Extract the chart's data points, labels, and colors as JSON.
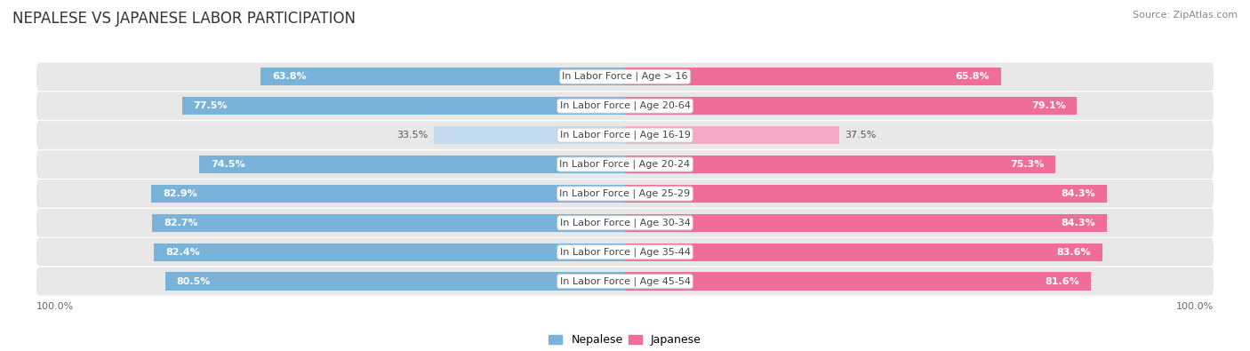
{
  "title": "NEPALESE VS JAPANESE LABOR PARTICIPATION",
  "source": "Source: ZipAtlas.com",
  "categories": [
    "In Labor Force | Age > 16",
    "In Labor Force | Age 20-64",
    "In Labor Force | Age 16-19",
    "In Labor Force | Age 20-24",
    "In Labor Force | Age 25-29",
    "In Labor Force | Age 30-34",
    "In Labor Force | Age 35-44",
    "In Labor Force | Age 45-54"
  ],
  "nepalese": [
    63.8,
    77.5,
    33.5,
    74.5,
    82.9,
    82.7,
    82.4,
    80.5
  ],
  "japanese": [
    65.8,
    79.1,
    37.5,
    75.3,
    84.3,
    84.3,
    83.6,
    81.6
  ],
  "nepalese_color": "#7ab3d9",
  "nepalese_light_color": "#c5dcee",
  "japanese_color": "#f06d9a",
  "japanese_light_color": "#f5aac5",
  "row_bg_even": "#eeeeee",
  "row_bg_odd": "#e6e6e6",
  "bar_height": 0.62,
  "max_value": 100.0,
  "background_color": "#ffffff",
  "title_fontsize": 12,
  "label_fontsize": 8,
  "value_fontsize": 8,
  "axis_fontsize": 8,
  "legend_fontsize": 9
}
